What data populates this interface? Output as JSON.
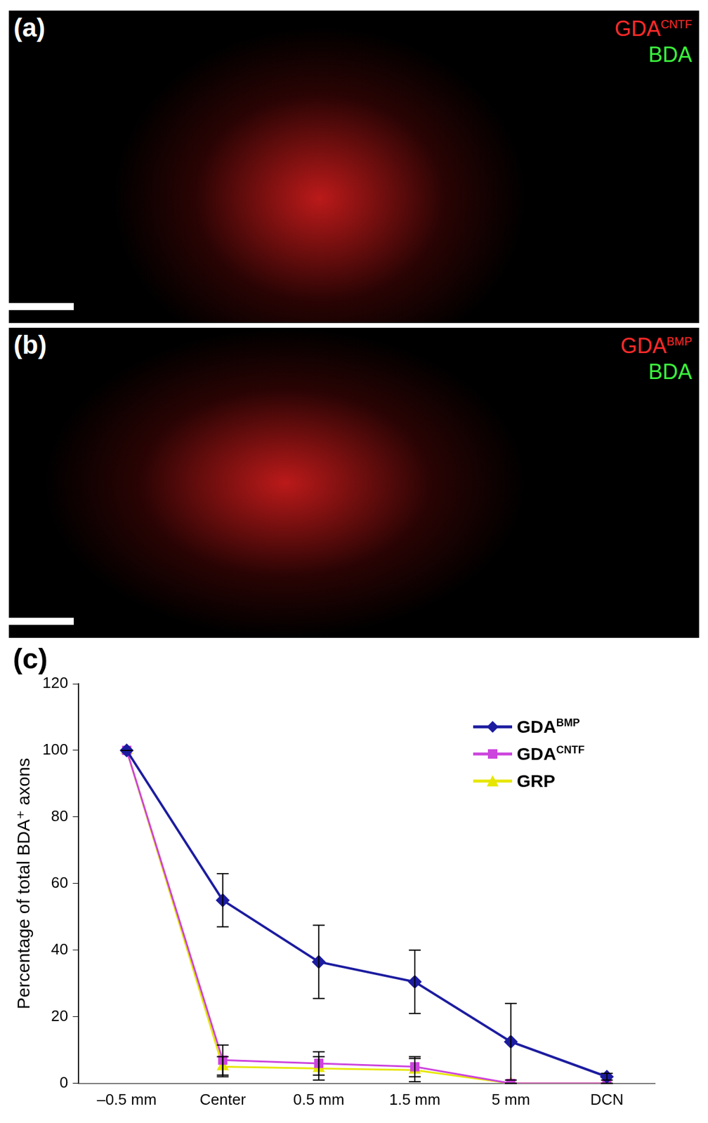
{
  "panels": [
    {
      "label": "(a)",
      "channels": [
        {
          "name": "GDA",
          "name_sup": "CNTF",
          "color": "#ff2a2a"
        },
        {
          "name": "BDA",
          "color": "#3cf03c"
        }
      ]
    },
    {
      "label": "(b)",
      "channels": [
        {
          "name": "GDA",
          "name_sup": "BMP",
          "color": "#ff2a2a"
        },
        {
          "name": "BDA",
          "color": "#3cf03c"
        }
      ]
    }
  ],
  "chart_data": {
    "type": "line",
    "label": "(c)",
    "y_label": "Percentage of total BDA⁺ axons",
    "categories": [
      "–0.5 mm",
      "Center",
      "0.5 mm",
      "1.5 mm",
      "5 mm",
      "DCN"
    ],
    "series": [
      {
        "name": "GDA",
        "name_sup": "BMP",
        "color": "#1c1ca0",
        "marker": "diamond",
        "values": [
          100,
          55,
          36.5,
          30.5,
          12.5,
          2
        ],
        "errors": [
          0,
          8,
          11,
          9.5,
          11.5,
          1
        ]
      },
      {
        "name": "GDA",
        "name_sup": "CNTF",
        "color": "#cc44dd",
        "marker": "square",
        "values": [
          100,
          7,
          6,
          5,
          0,
          0
        ],
        "errors": [
          0,
          4.5,
          3.5,
          3,
          0,
          0
        ]
      },
      {
        "name": "GRP",
        "color": "#e6e600",
        "marker": "triangle",
        "values": [
          100,
          5,
          4.5,
          4,
          0,
          0
        ],
        "errors": [
          0,
          3,
          3.5,
          3.5,
          0,
          0
        ]
      }
    ],
    "ylim": [
      0,
      120
    ],
    "yticks": [
      0,
      20,
      40,
      60,
      80,
      100,
      120
    ],
    "grid": false,
    "legend": "upper right"
  }
}
